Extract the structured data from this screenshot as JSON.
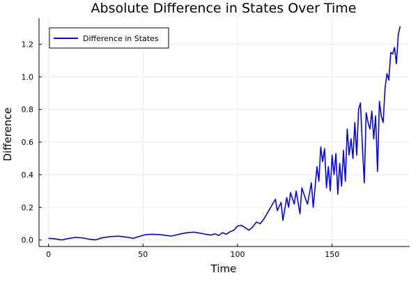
{
  "chart_data": {
    "type": "line",
    "title": "Absolute Difference in States Over Time",
    "xlabel": "Time",
    "ylabel": "Difference",
    "xlim": [
      -5,
      191
    ],
    "ylim": [
      -0.04,
      1.36
    ],
    "xticks": [
      0,
      50,
      100,
      150
    ],
    "yticks": [
      0.0,
      0.2,
      0.4,
      0.6,
      0.8,
      1.0,
      1.2
    ],
    "xtick_labels": [
      "0",
      "50",
      "100",
      "150"
    ],
    "ytick_labels": [
      "0.0",
      "0.2",
      "0.4",
      "0.6",
      "0.8",
      "1.0",
      "1.2"
    ],
    "grid": true,
    "legend_position": "top-left",
    "series": [
      {
        "name": "Difference in States",
        "color": "#0000ff",
        "x": [
          0,
          3,
          7,
          10,
          14,
          18,
          22,
          25,
          28,
          32,
          37,
          41,
          45,
          48,
          51,
          55,
          59,
          62,
          65,
          68,
          71,
          74,
          77,
          80,
          83,
          86,
          88,
          90,
          92,
          94,
          96,
          98,
          100,
          102,
          104,
          106,
          108,
          110,
          112,
          114,
          116,
          118,
          120,
          121,
          123,
          124,
          126,
          127,
          128,
          130,
          131,
          133,
          134,
          136,
          137,
          139,
          140,
          142,
          143,
          144,
          145,
          146,
          147,
          148,
          149,
          150,
          151,
          152,
          153,
          154,
          155,
          156,
          157,
          158,
          159,
          160,
          161,
          162,
          163,
          164,
          165,
          166,
          167,
          168,
          169,
          170,
          171,
          172,
          173,
          174,
          175,
          176,
          177,
          178,
          179,
          180,
          181,
          182,
          183,
          184,
          185,
          186
        ],
        "y": [
          0.01,
          0.008,
          0.0,
          0.008,
          0.015,
          0.013,
          0.004,
          0.001,
          0.012,
          0.02,
          0.023,
          0.018,
          0.01,
          0.022,
          0.032,
          0.035,
          0.033,
          0.028,
          0.024,
          0.032,
          0.04,
          0.046,
          0.048,
          0.042,
          0.035,
          0.03,
          0.038,
          0.028,
          0.045,
          0.035,
          0.05,
          0.06,
          0.085,
          0.09,
          0.075,
          0.06,
          0.08,
          0.11,
          0.1,
          0.13,
          0.17,
          0.21,
          0.25,
          0.18,
          0.23,
          0.12,
          0.26,
          0.2,
          0.29,
          0.22,
          0.3,
          0.16,
          0.32,
          0.25,
          0.22,
          0.35,
          0.2,
          0.45,
          0.36,
          0.57,
          0.48,
          0.56,
          0.32,
          0.45,
          0.3,
          0.52,
          0.4,
          0.53,
          0.28,
          0.47,
          0.33,
          0.55,
          0.36,
          0.68,
          0.52,
          0.62,
          0.5,
          0.72,
          0.52,
          0.8,
          0.84,
          0.58,
          0.35,
          0.78,
          0.72,
          0.68,
          0.79,
          0.62,
          0.76,
          0.42,
          0.85,
          0.76,
          0.72,
          0.93,
          1.02,
          0.98,
          1.15,
          1.14,
          1.18,
          1.08,
          1.26,
          1.31
        ]
      }
    ]
  }
}
